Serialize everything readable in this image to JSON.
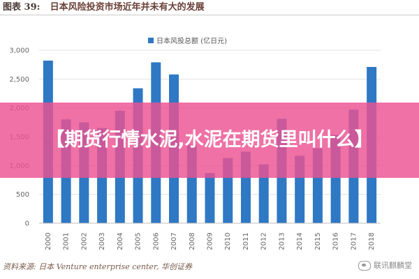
{
  "header": {
    "figure_number": "图表 39:",
    "figure_title": "日本风险投资市场近年并未有大的发展"
  },
  "banner": {
    "text": "【期货行情水泥,水泥在期货里叫什么】"
  },
  "footer": {
    "source": "资料来源: 日本 Venture enterprise center, 华创证券",
    "watermark": "联讯麒麟堂"
  },
  "colors": {
    "bar": "#2f78c4",
    "grid": "#e2e2e2",
    "banner": "#ec5291"
  },
  "chart_data": {
    "type": "bar",
    "title": "",
    "xlabel": "",
    "ylabel": "",
    "categories": [
      "2000",
      "2001",
      "2002",
      "2003",
      "2004",
      "2005",
      "2006",
      "2007",
      "2008",
      "2009",
      "2010",
      "2011",
      "2012",
      "2013",
      "2014",
      "2015",
      "2016",
      "2017",
      "2018"
    ],
    "series": [
      {
        "name": "日本风投总额 (亿日元)",
        "values": [
          2820,
          1800,
          1750,
          1650,
          1950,
          2340,
          2790,
          2580,
          1360,
          870,
          1130,
          1240,
          1020,
          1810,
          1170,
          1300,
          1530,
          1970,
          2710
        ]
      }
    ],
    "ylim": [
      0,
      3000
    ],
    "yticks": [
      0,
      500,
      1000,
      1500,
      2000,
      2500,
      3000
    ],
    "ytick_labels": [
      "0",
      "500",
      "1,000",
      "1,500",
      "2,000",
      "2,500",
      "3,000"
    ],
    "grid": true,
    "legend_position": "top-center"
  }
}
